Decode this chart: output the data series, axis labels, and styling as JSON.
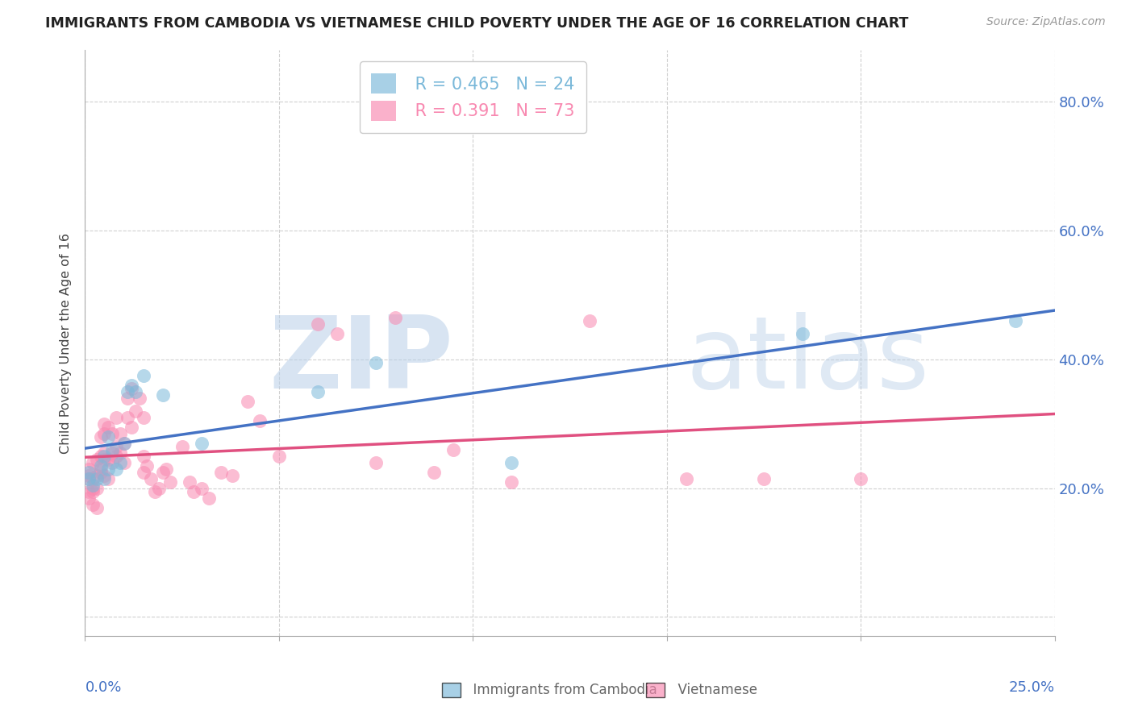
{
  "title": "IMMIGRANTS FROM CAMBODIA VS VIETNAMESE CHILD POVERTY UNDER THE AGE OF 16 CORRELATION CHART",
  "source": "Source: ZipAtlas.com",
  "ylabel": "Child Poverty Under the Age of 16",
  "ytick_positions": [
    0.0,
    0.2,
    0.4,
    0.6,
    0.8
  ],
  "ytick_labels": [
    "",
    "20.0%",
    "40.0%",
    "60.0%",
    "80.0%"
  ],
  "xlim": [
    0.0,
    0.25
  ],
  "ylim": [
    -0.03,
    0.88
  ],
  "legend_r_cambodia": "R = 0.465",
  "legend_n_cambodia": "N = 24",
  "legend_r_vietnamese": "R = 0.391",
  "legend_n_vietnamese": "N = 73",
  "color_cambodia": "#7ab8d9",
  "color_vietnamese": "#f888b0",
  "label_cambodia": "Immigrants from Cambodia",
  "label_vietnamese": "Vietnamese",
  "cambodia_x": [
    0.001,
    0.001,
    0.002,
    0.003,
    0.004,
    0.005,
    0.005,
    0.006,
    0.006,
    0.007,
    0.008,
    0.009,
    0.01,
    0.011,
    0.012,
    0.013,
    0.015,
    0.02,
    0.03,
    0.06,
    0.075,
    0.11,
    0.185,
    0.24
  ],
  "cambodia_y": [
    0.215,
    0.225,
    0.205,
    0.215,
    0.235,
    0.215,
    0.25,
    0.28,
    0.23,
    0.26,
    0.23,
    0.24,
    0.27,
    0.35,
    0.36,
    0.35,
    0.375,
    0.345,
    0.27,
    0.35,
    0.395,
    0.24,
    0.44,
    0.46
  ],
  "vietnamese_x": [
    0.001,
    0.001,
    0.001,
    0.001,
    0.001,
    0.002,
    0.002,
    0.002,
    0.002,
    0.002,
    0.003,
    0.003,
    0.003,
    0.003,
    0.004,
    0.004,
    0.004,
    0.004,
    0.005,
    0.005,
    0.005,
    0.005,
    0.005,
    0.006,
    0.006,
    0.006,
    0.007,
    0.007,
    0.007,
    0.008,
    0.008,
    0.008,
    0.009,
    0.009,
    0.01,
    0.01,
    0.011,
    0.011,
    0.012,
    0.012,
    0.013,
    0.014,
    0.015,
    0.015,
    0.015,
    0.016,
    0.017,
    0.018,
    0.019,
    0.02,
    0.021,
    0.022,
    0.025,
    0.027,
    0.028,
    0.03,
    0.032,
    0.035,
    0.038,
    0.042,
    0.045,
    0.05,
    0.06,
    0.065,
    0.075,
    0.08,
    0.09,
    0.095,
    0.11,
    0.13,
    0.155,
    0.175,
    0.2
  ],
  "vietnamese_y": [
    0.185,
    0.22,
    0.195,
    0.215,
    0.23,
    0.24,
    0.2,
    0.215,
    0.195,
    0.175,
    0.2,
    0.22,
    0.245,
    0.17,
    0.23,
    0.25,
    0.225,
    0.28,
    0.245,
    0.285,
    0.22,
    0.255,
    0.3,
    0.245,
    0.215,
    0.295,
    0.255,
    0.24,
    0.285,
    0.265,
    0.25,
    0.31,
    0.255,
    0.285,
    0.27,
    0.24,
    0.31,
    0.34,
    0.295,
    0.355,
    0.32,
    0.34,
    0.31,
    0.25,
    0.225,
    0.235,
    0.215,
    0.195,
    0.2,
    0.225,
    0.23,
    0.21,
    0.265,
    0.21,
    0.195,
    0.2,
    0.185,
    0.225,
    0.22,
    0.335,
    0.305,
    0.25,
    0.455,
    0.44,
    0.24,
    0.465,
    0.225,
    0.26,
    0.21,
    0.46,
    0.215,
    0.215,
    0.215
  ]
}
